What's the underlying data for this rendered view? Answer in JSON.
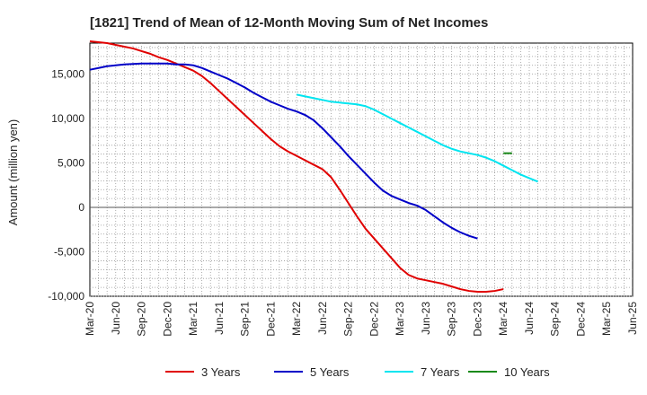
{
  "chart_data": {
    "type": "line",
    "title": "[1821]  Trend of Mean of 12-Month Moving Sum of Net Incomes",
    "xlabel": "",
    "ylabel": "Amount (million yen)",
    "ylim": [
      -10000,
      18500
    ],
    "yticks": [
      -10000,
      -5000,
      0,
      5000,
      10000,
      15000
    ],
    "ytick_labels": [
      "-10,000",
      "-5,000",
      "0",
      "5,000",
      "10,000",
      "15,000"
    ],
    "xticks": [
      "Mar-20",
      "Jun-20",
      "Sep-20",
      "Dec-20",
      "Mar-21",
      "Jun-21",
      "Sep-21",
      "Dec-21",
      "Mar-22",
      "Jun-22",
      "Sep-22",
      "Dec-22",
      "Mar-23",
      "Jun-23",
      "Sep-23",
      "Dec-23",
      "Mar-24",
      "Jun-24",
      "Sep-24",
      "Dec-24",
      "Mar-25",
      "Jun-25"
    ],
    "grid": true,
    "legend_position": "bottom",
    "series": [
      {
        "name": "3 Years",
        "color": "#e00000",
        "start_index": 0,
        "values": [
          18700,
          18600,
          18500,
          18300,
          18100,
          17900,
          17600,
          17300,
          16900,
          16600,
          16200,
          15800,
          15400,
          14800,
          14000,
          13100,
          12200,
          11300,
          10400,
          9500,
          8600,
          7700,
          6900,
          6300,
          5800,
          5300,
          4800,
          4300,
          3400,
          2000,
          500,
          -1000,
          -2400,
          -3500,
          -4600,
          -5700,
          -6800,
          -7600,
          -8000,
          -8200,
          -8400,
          -8600,
          -8900,
          -9200,
          -9400,
          -9500,
          -9500,
          -9400,
          -9200
        ]
      },
      {
        "name": "5 Years",
        "color": "#0000c8",
        "start_index": 0,
        "values": [
          15500,
          15700,
          15900,
          16000,
          16100,
          16150,
          16200,
          16200,
          16200,
          16200,
          16100,
          16100,
          16000,
          15700,
          15300,
          14900,
          14500,
          14000,
          13500,
          12900,
          12400,
          11900,
          11500,
          11100,
          10800,
          10400,
          9800,
          8900,
          7900,
          6900,
          5800,
          4800,
          3800,
          2800,
          1900,
          1300,
          900,
          500,
          200,
          -300,
          -1000,
          -1700,
          -2300,
          -2800,
          -3200,
          -3500
        ]
      },
      {
        "name": "7 Years",
        "color": "#00e5f0",
        "start_index": 24,
        "values": [
          12700,
          12500,
          12300,
          12100,
          11900,
          11800,
          11700,
          11600,
          11400,
          11000,
          10500,
          10000,
          9500,
          9000,
          8500,
          8000,
          7500,
          7000,
          6600,
          6300,
          6100,
          5900,
          5600,
          5200,
          4700,
          4200,
          3700,
          3300,
          2900
        ]
      },
      {
        "name": "10 Years",
        "color": "#1a8a1a",
        "start_index": 48,
        "values": [
          6100,
          6100
        ]
      }
    ]
  }
}
